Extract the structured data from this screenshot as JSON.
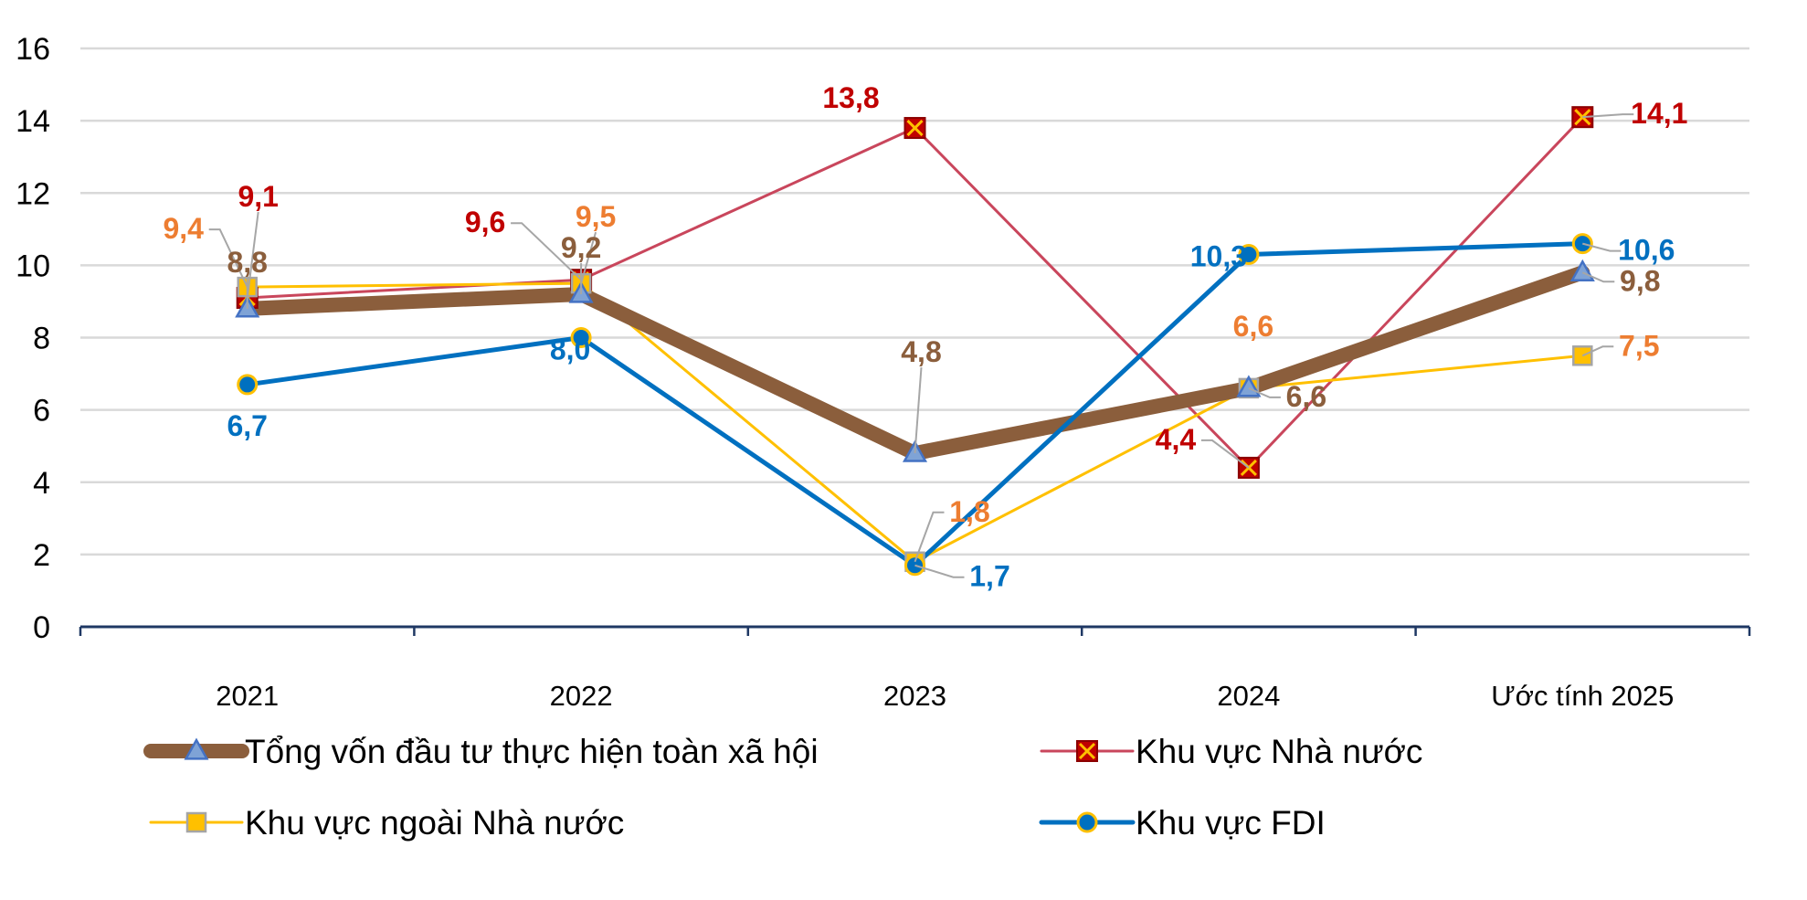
{
  "chart_data": {
    "type": "line",
    "categories": [
      "2021",
      "2022",
      "2023",
      "2024",
      "Ước tính 2025"
    ],
    "ylim": [
      0,
      16
    ],
    "yticks": [
      0,
      2,
      4,
      6,
      8,
      10,
      12,
      14,
      16
    ],
    "grid": true,
    "legend_position": "bottom",
    "series": [
      {
        "key": "total",
        "name": "Tổng vốn đầu tư thực hiện toàn xã hội",
        "values": [
          8.8,
          9.2,
          4.8,
          6.6,
          9.8
        ],
        "labels": [
          "8,8",
          "9,2",
          "4,8",
          "6,6",
          "9,8"
        ],
        "color": "#8B5E3C",
        "label_color": "#8B5E3C",
        "marker": "triangle",
        "marker_color": "#7FA3D6"
      },
      {
        "key": "state",
        "name": "Khu vực Nhà nước",
        "values": [
          9.1,
          9.6,
          13.8,
          4.4,
          14.1
        ],
        "labels": [
          "9,1",
          "9,6",
          "13,8",
          "4,4",
          "14,1"
        ],
        "color": "#C9465C",
        "label_color": "#C00000",
        "marker": "xsquare",
        "marker_color": "#C00000"
      },
      {
        "key": "nonstate",
        "name": "Khu vực ngoài Nhà nước",
        "values": [
          9.4,
          9.5,
          1.8,
          6.6,
          7.5
        ],
        "labels": [
          "9,4",
          "9,5",
          "1,8",
          "6,6",
          "7,5"
        ],
        "color": "#FFC000",
        "label_color": "#ED7D31",
        "marker": "square",
        "marker_color": "#FFC000"
      },
      {
        "key": "fdi",
        "name": "Khu vực FDI",
        "values": [
          6.7,
          8.0,
          1.7,
          10.3,
          10.6
        ],
        "labels": [
          "6,7",
          "8,0",
          "1,7",
          "10,3",
          "10,6"
        ],
        "color": "#0070C0",
        "label_color": "#0070C0",
        "marker": "circle",
        "marker_color": "#0070C0"
      }
    ]
  }
}
